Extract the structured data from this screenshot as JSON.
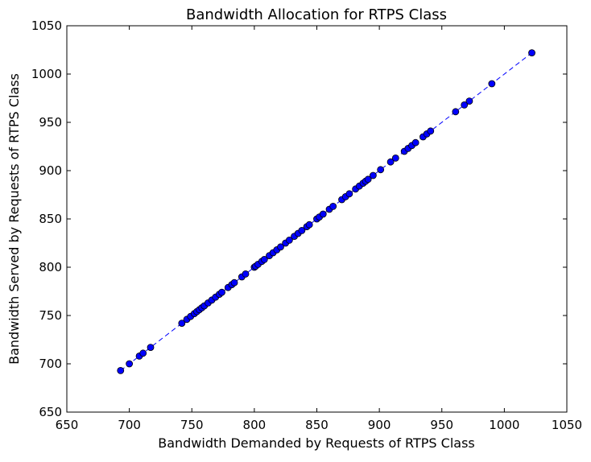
{
  "chart_data": {
    "type": "scatter",
    "title": "Bandwidth Allocation for RTPS Class",
    "xlabel": "Bandwidth Demanded by Requests of RTPS Class",
    "ylabel": "Bandwidth Served by Requests of RTPS Class",
    "xlim": [
      650,
      1050
    ],
    "ylim": [
      650,
      1050
    ],
    "xticks": [
      650,
      700,
      750,
      800,
      850,
      900,
      950,
      1000,
      1050
    ],
    "yticks": [
      650,
      700,
      750,
      800,
      850,
      900,
      950,
      1000,
      1050
    ],
    "grid": false,
    "legend": "none",
    "line_style": "dashed",
    "color": "#0000ff",
    "marker": "circle",
    "series": [
      {
        "x": [
          693,
          700,
          708,
          711,
          717,
          742,
          746,
          749,
          752,
          754,
          756,
          758,
          760,
          763,
          766,
          769,
          772,
          774,
          779,
          782,
          784,
          790,
          793,
          800,
          801,
          803,
          806,
          808,
          812,
          815,
          818,
          821,
          825,
          828,
          832,
          835,
          838,
          842,
          844,
          850,
          852,
          855,
          860,
          863,
          870,
          873,
          876,
          881,
          884,
          887,
          889,
          891,
          895,
          901,
          909,
          913,
          920,
          923,
          926,
          929,
          935,
          938,
          941,
          961,
          968,
          972,
          990,
          1022
        ],
        "y": [
          693,
          700,
          708,
          711,
          717,
          742,
          746,
          749,
          752,
          754,
          756,
          758,
          760,
          763,
          766,
          769,
          772,
          774,
          779,
          782,
          784,
          790,
          793,
          800,
          801,
          803,
          806,
          808,
          812,
          815,
          818,
          821,
          825,
          828,
          832,
          835,
          838,
          842,
          844,
          850,
          852,
          855,
          860,
          863,
          870,
          873,
          876,
          881,
          884,
          887,
          889,
          891,
          895,
          901,
          909,
          913,
          920,
          923,
          926,
          929,
          935,
          938,
          941,
          961,
          968,
          972,
          990,
          1022
        ]
      }
    ]
  }
}
